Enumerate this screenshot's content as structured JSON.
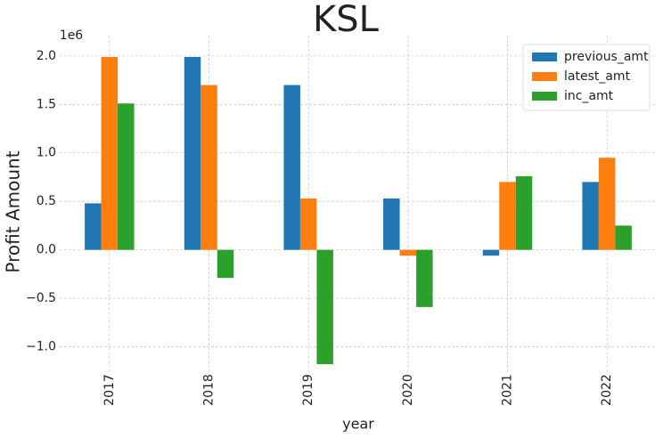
{
  "chart_data": {
    "type": "bar",
    "title": "KSL",
    "xlabel": "year",
    "ylabel": "Profit Amount",
    "y_offset_label": "1e6",
    "categories": [
      "2017",
      "2018",
      "2019",
      "2020",
      "2021",
      "2022"
    ],
    "series": [
      {
        "name": "previous_amt",
        "color": "#1f77b4",
        "values": [
          0.48,
          1.99,
          1.7,
          0.53,
          -0.06,
          0.7
        ]
      },
      {
        "name": "latest_amt",
        "color": "#ff7f0e",
        "values": [
          1.99,
          1.7,
          0.53,
          -0.06,
          0.7,
          0.95
        ]
      },
      {
        "name": "inc_amt",
        "color": "#2ca02c",
        "values": [
          1.51,
          -0.29,
          -1.18,
          -0.59,
          0.76,
          0.25
        ]
      }
    ],
    "ylim": [
      -1.28,
      2.21
    ],
    "yticks": [
      {
        "value": -1,
        "label": "−1.0"
      },
      {
        "value": -0.5,
        "label": "−0.5"
      },
      {
        "value": 0,
        "label": "0.0"
      },
      {
        "value": 0.5,
        "label": "0.5"
      },
      {
        "value": 1,
        "label": "1.0"
      },
      {
        "value": 1.5,
        "label": "1.5"
      },
      {
        "value": 2,
        "label": "2.0"
      }
    ],
    "grid": true,
    "legend": "upper right"
  }
}
